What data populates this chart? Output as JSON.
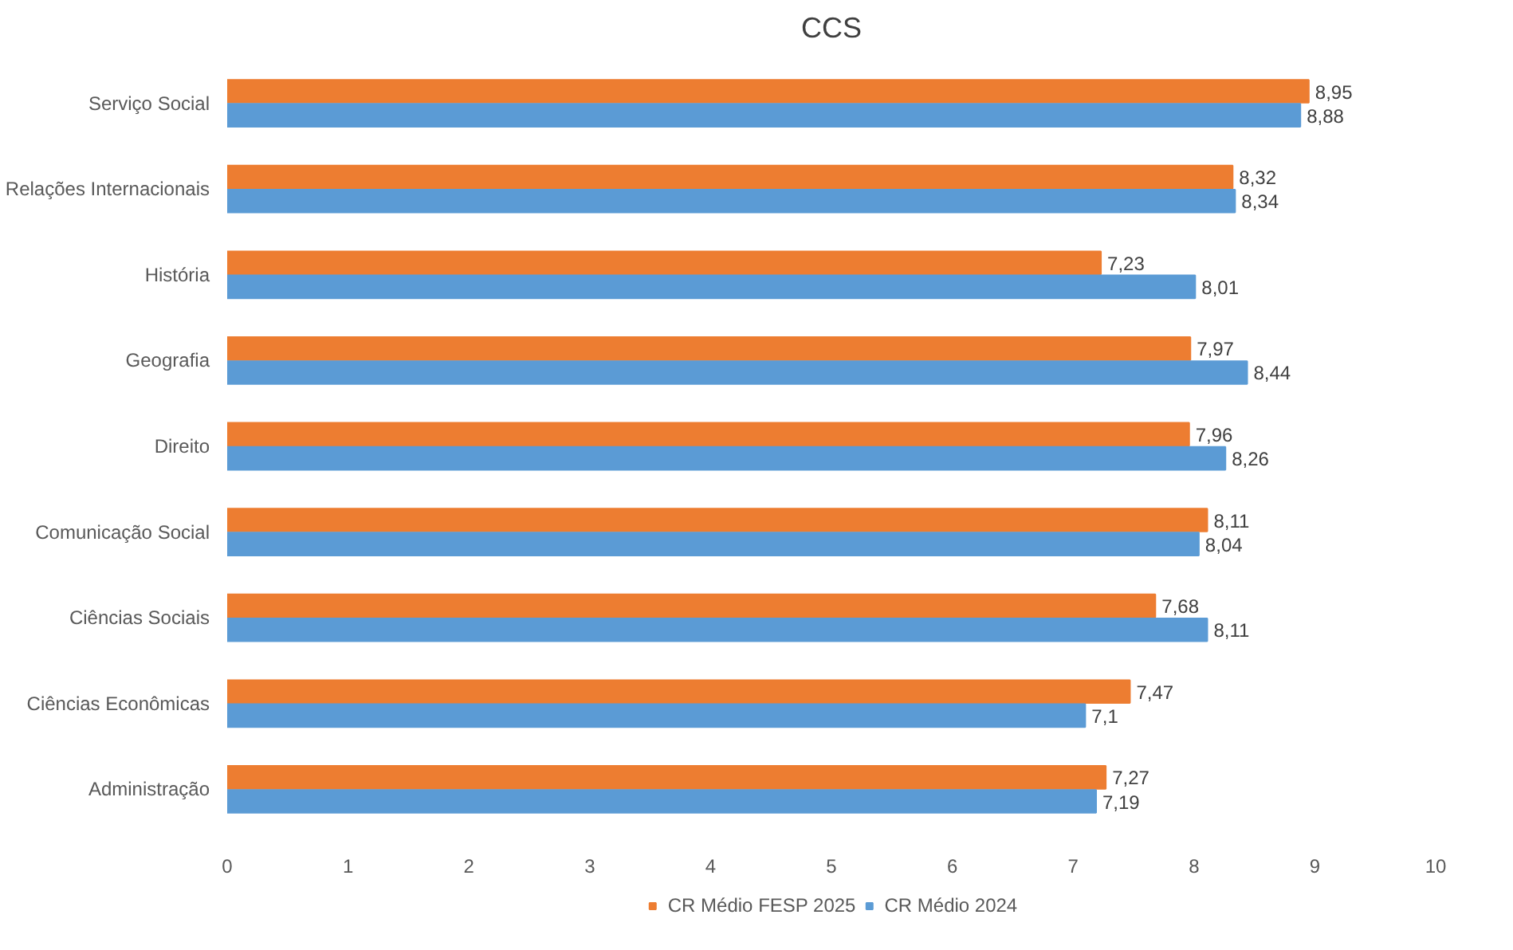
{
  "chart_data": {
    "type": "bar",
    "orientation": "horizontal",
    "title": "CCS",
    "categories": [
      "Serviço Social",
      "Relações Internacionais",
      "História",
      "Geografia",
      "Direito",
      "Comunicação Social",
      "Ciências Sociais",
      "Ciências Econômicas",
      "Administração"
    ],
    "series": [
      {
        "name": "CR Médio FESP 2025",
        "color": "#ed7d31",
        "values": [
          8.95,
          8.32,
          7.23,
          7.97,
          7.96,
          8.11,
          7.68,
          7.47,
          7.27
        ],
        "value_labels": [
          "8,95",
          "8,32",
          "7,23",
          "7,97",
          "7,96",
          "8,11",
          "7,68",
          "7,47",
          "7,27"
        ]
      },
      {
        "name": "CR Médio 2024",
        "color": "#5b9bd5",
        "values": [
          8.88,
          8.34,
          8.01,
          8.44,
          8.26,
          8.04,
          8.11,
          7.1,
          7.19
        ],
        "value_labels": [
          "8,88",
          "8,34",
          "8,01",
          "8,44",
          "8,26",
          "8,04",
          "8,11",
          "7,1",
          "7,19"
        ]
      }
    ],
    "xlim": [
      0,
      10
    ],
    "xticks": [
      0,
      1,
      2,
      3,
      4,
      5,
      6,
      7,
      8,
      9,
      10
    ],
    "grid": false,
    "legend": "bottom"
  }
}
